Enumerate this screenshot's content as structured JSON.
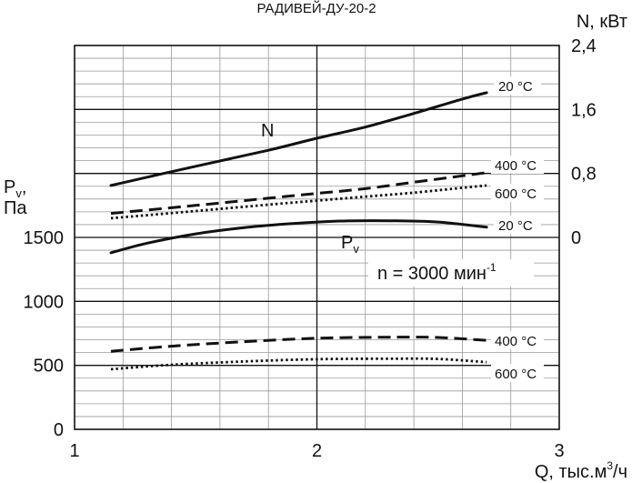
{
  "chart_data": {
    "type": "line",
    "title": "РАДИВЕЙ-ДУ-20-2",
    "x": {
      "label_main": "Q, тыс.м",
      "label_sup": "3",
      "label_tail": "/ч",
      "lim": [
        1,
        3
      ],
      "ticks": [
        "1",
        "2",
        "3"
      ]
    },
    "y_left": {
      "label_line1_main": "P",
      "label_line1_sub": "v",
      "label_line1_tail": ",",
      "label_line2": "Па",
      "lim": [
        0,
        3000
      ],
      "ticks": [
        "0",
        "500",
        "1000",
        "1500"
      ]
    },
    "y_right": {
      "label": "N, кВт",
      "lim": [
        -2.4,
        2.4
      ],
      "ticks": [
        "0",
        "0,8",
        "1,6",
        "2,4"
      ]
    },
    "grid": true,
    "annotation": {
      "main": "n = 3000 мин",
      "sup": "-1"
    },
    "curve_names": {
      "N": "N",
      "Pv_main": "P",
      "Pv_sub": "v"
    },
    "series": [
      {
        "axis": "right",
        "style": "solid",
        "curve_label": "20 °C",
        "x": [
          1.15,
          1.5,
          1.8,
          2.0,
          2.2,
          2.4,
          2.6,
          2.7
        ],
        "values": [
          0.65,
          0.89,
          1.09,
          1.24,
          1.38,
          1.55,
          1.73,
          1.81
        ]
      },
      {
        "axis": "right",
        "style": "dashed",
        "curve_label": "400 °C",
        "x": [
          1.15,
          1.5,
          1.8,
          2.0,
          2.2,
          2.4,
          2.6,
          2.7
        ],
        "values": [
          0.3,
          0.4,
          0.49,
          0.55,
          0.61,
          0.69,
          0.77,
          0.81
        ]
      },
      {
        "axis": "right",
        "style": "dotted",
        "curve_label": "600 °C",
        "x": [
          1.15,
          1.5,
          1.8,
          2.0,
          2.2,
          2.4,
          2.6,
          2.7
        ],
        "values": [
          0.24,
          0.33,
          0.41,
          0.46,
          0.51,
          0.56,
          0.62,
          0.65
        ]
      },
      {
        "axis": "left",
        "style": "solid",
        "curve_label": "20 °C",
        "x": [
          1.15,
          1.3,
          1.5,
          1.7,
          1.9,
          2.1,
          2.3,
          2.5,
          2.7
        ],
        "values": [
          1380,
          1455,
          1528,
          1576,
          1608,
          1628,
          1630,
          1620,
          1580
        ]
      },
      {
        "axis": "left",
        "style": "dashed",
        "curve_label": "400 °C",
        "x": [
          1.15,
          1.4,
          1.7,
          2.0,
          2.3,
          2.5,
          2.7
        ],
        "values": [
          610,
          650,
          685,
          712,
          720,
          718,
          695
        ]
      },
      {
        "axis": "left",
        "style": "dotted",
        "curve_label": "600 °C",
        "x": [
          1.15,
          1.4,
          1.7,
          2.0,
          2.3,
          2.5,
          2.7
        ],
        "values": [
          470,
          505,
          530,
          548,
          552,
          550,
          525
        ]
      }
    ]
  }
}
